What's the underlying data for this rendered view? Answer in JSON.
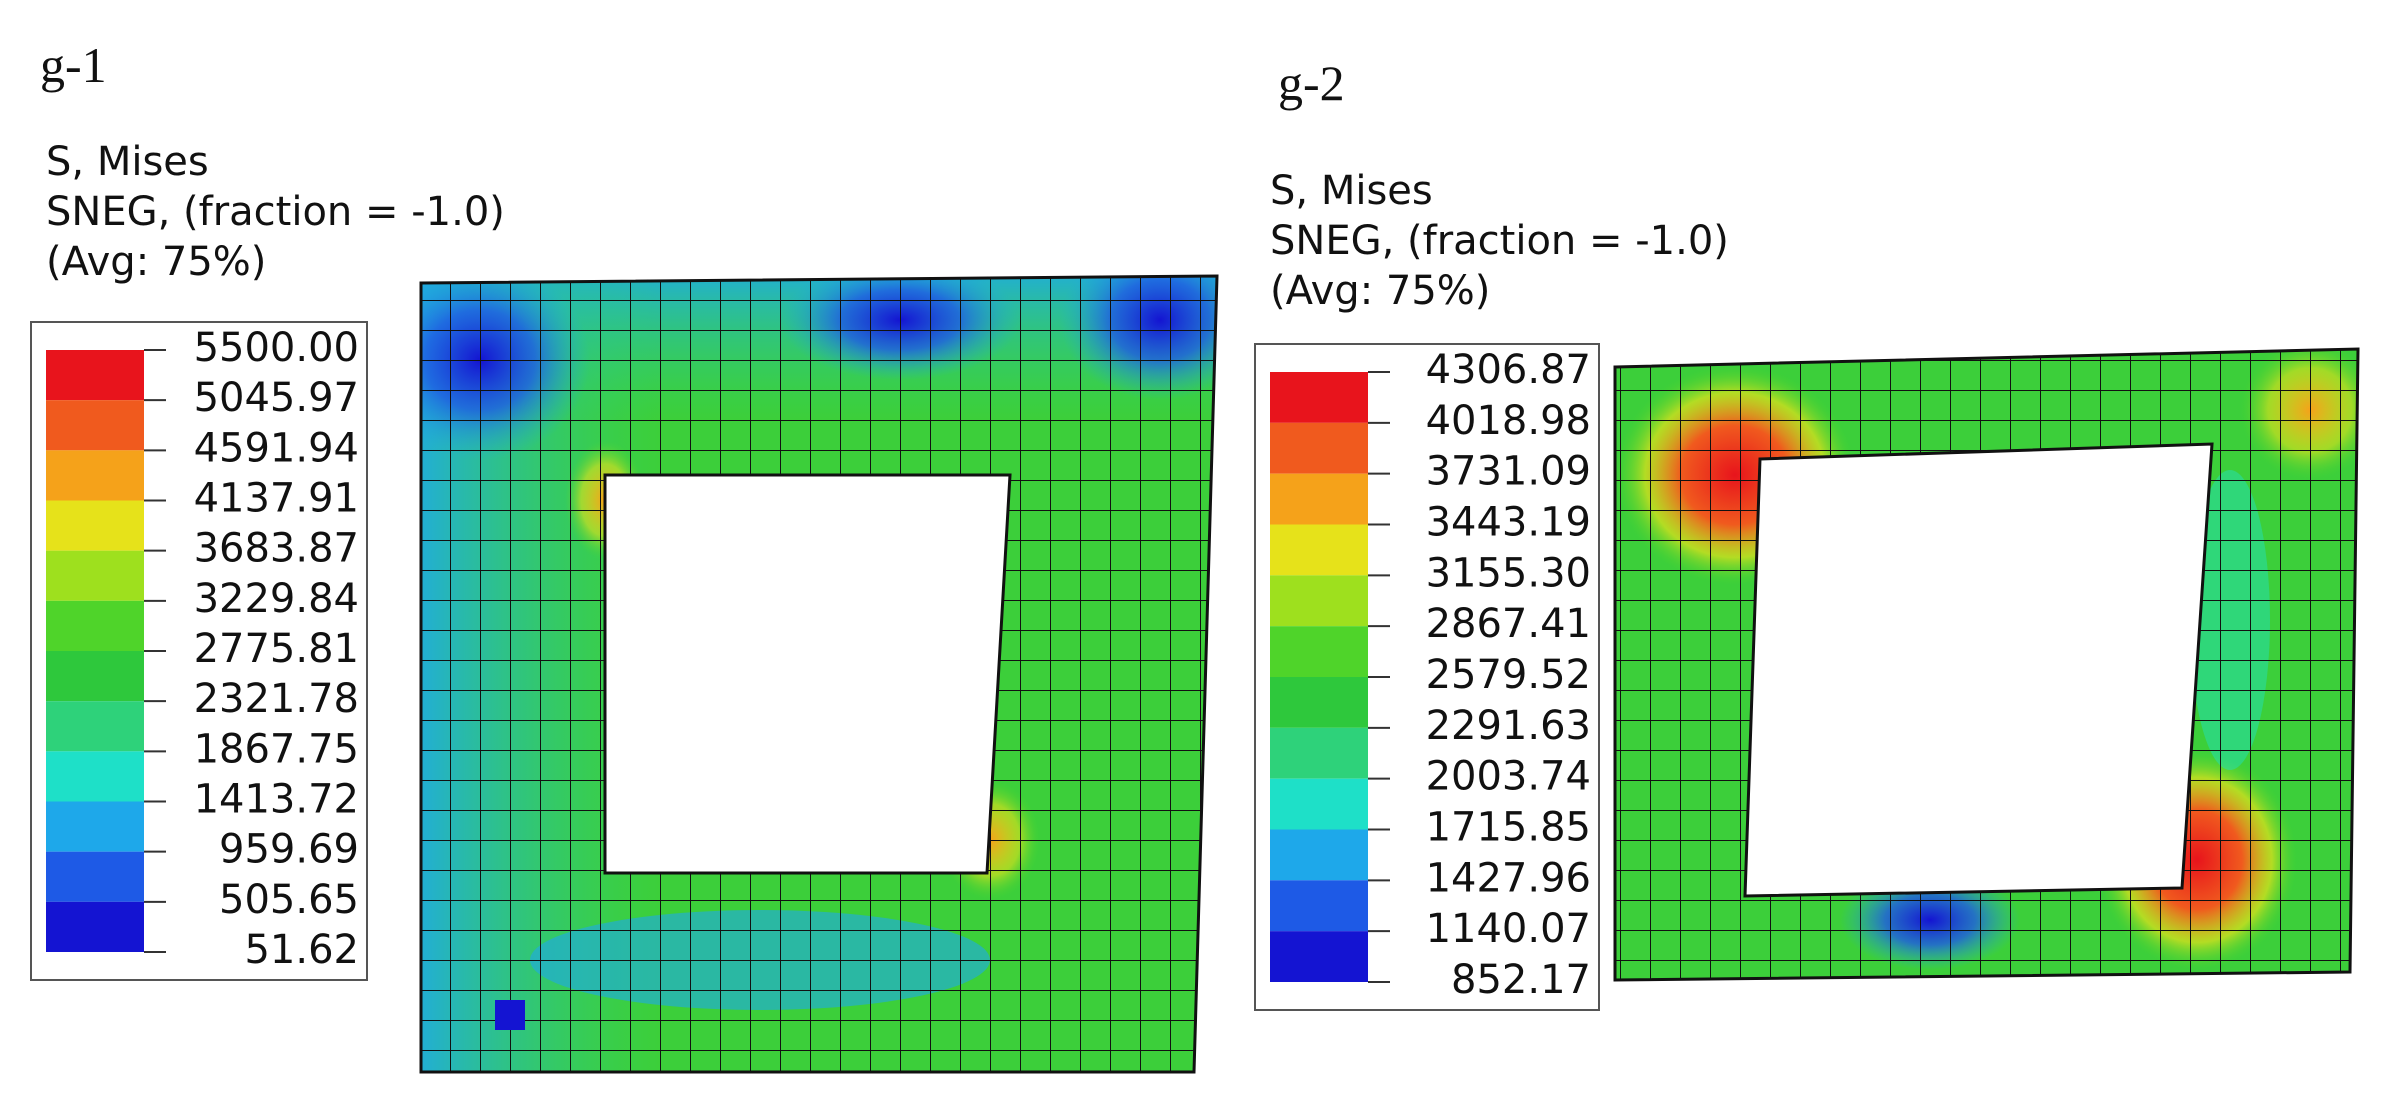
{
  "panels": [
    {
      "label": "g-1",
      "legend": {
        "title": [
          "S, Mises",
          "SNEG, (fraction = -1.0)",
          "(Avg: 75%)"
        ],
        "values": [
          "5500.00",
          "5045.97",
          "4591.94",
          "4137.91",
          "3683.87",
          "3229.84",
          "2775.81",
          "2321.78",
          "1867.75",
          "1413.72",
          "959.69",
          "505.65",
          "51.62"
        ],
        "colors": [
          "#e8141c",
          "#f05a1e",
          "#f5a21a",
          "#e6e21a",
          "#9ee01e",
          "#4fd42a",
          "#2ec83c",
          "#2ed27a",
          "#1ee0c8",
          "#1ea8ea",
          "#1e5ae6",
          "#1414d2"
        ]
      }
    },
    {
      "label": "g-2",
      "legend": {
        "title": [
          "S, Mises",
          "SNEG, (fraction = -1.0)",
          "(Avg: 75%)"
        ],
        "values": [
          "4306.87",
          "4018.98",
          "3731.09",
          "3443.19",
          "3155.30",
          "2867.41",
          "2579.52",
          "2291.63",
          "2003.74",
          "1715.85",
          "1427.96",
          "1140.07",
          "852.17"
        ],
        "colors": [
          "#e8141c",
          "#f05a1e",
          "#f5a21a",
          "#e6e21a",
          "#9ee01e",
          "#4fd42a",
          "#2ec83c",
          "#2ed27a",
          "#1ee0c8",
          "#1ea8ea",
          "#1e5ae6",
          "#1414d2"
        ]
      }
    }
  ]
}
